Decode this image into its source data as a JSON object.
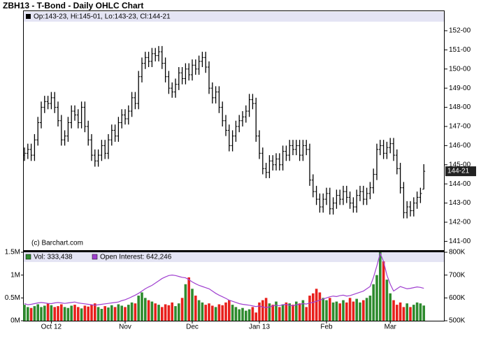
{
  "chart_data": [
    {
      "type": "ohlc",
      "title": "ZBH13 - T-Bond - Daily OHLC Chart",
      "header": "Op:143-23, Hi:145-01, Lo:143-23, Cl:144-21",
      "watermark": "(c) Barchart.com",
      "last_label": "144-21",
      "last_value": 144.66,
      "color": "#000000",
      "ylim": [
        140.54,
        153.02
      ],
      "yticks": [
        {
          "value": 141,
          "label": "141-00"
        },
        {
          "value": 142,
          "label": "142-00"
        },
        {
          "value": 143,
          "label": "143-00"
        },
        {
          "value": 144,
          "label": "144-00"
        },
        {
          "value": 145,
          "label": "145-00"
        },
        {
          "value": 146,
          "label": "146-00"
        },
        {
          "value": 147,
          "label": "147-00"
        },
        {
          "value": 148,
          "label": "148-00"
        },
        {
          "value": 149,
          "label": "149-00"
        },
        {
          "value": 150,
          "label": "150-00"
        },
        {
          "value": 151,
          "label": "151-00"
        },
        {
          "value": 152,
          "label": "152-00"
        }
      ],
      "open": [
        145.5,
        145.6,
        145.8,
        145.5,
        146.3,
        147.2,
        148.0,
        148.3,
        148.2,
        148.5,
        148.0,
        147.3,
        146.3,
        146.5,
        147.2,
        147.8,
        147.6,
        147.2,
        148.0,
        147.0,
        146.3,
        145.5,
        145.2,
        145.5,
        146.0,
        145.6,
        146.3,
        146.8,
        146.5,
        147.2,
        147.6,
        147.4,
        147.8,
        148.5,
        148.2,
        149.6,
        150.3,
        150.6,
        150.4,
        150.8,
        150.7,
        150.9,
        150.3,
        149.6,
        149.0,
        148.8,
        149.2,
        149.8,
        149.5,
        150.0,
        149.7,
        150.2,
        150.0,
        150.4,
        150.6,
        150.1,
        149.0,
        148.5,
        148.8,
        148.0,
        147.3,
        146.8,
        146.0,
        146.5,
        147.0,
        147.3,
        147.5,
        147.8,
        148.4,
        148.2,
        146.5,
        145.6,
        144.8,
        144.6,
        145.2,
        145.0,
        145.3,
        145.0,
        145.7,
        145.5,
        146.0,
        145.8,
        146.0,
        145.5,
        146.0,
        145.8,
        144.2,
        143.6,
        143.2,
        142.8,
        143.2,
        143.5,
        142.7,
        143.0,
        143.4,
        143.2,
        143.6,
        143.3,
        143.0,
        142.8,
        143.4,
        143.6,
        143.2,
        143.5,
        143.8,
        144.5,
        145.8,
        146.0,
        145.6,
        145.9,
        146.1,
        145.5,
        144.8,
        143.8,
        142.5,
        142.8,
        142.6,
        143.0,
        143.3,
        143.72
      ],
      "high": [
        145.9,
        146.1,
        146.1,
        146.6,
        147.5,
        148.3,
        148.6,
        148.6,
        148.8,
        148.8,
        148.3,
        147.6,
        146.8,
        147.5,
        148.1,
        148.1,
        147.9,
        148.3,
        148.3,
        147.3,
        146.6,
        145.8,
        145.8,
        146.3,
        146.3,
        146.6,
        147.1,
        147.1,
        147.5,
        147.9,
        147.9,
        148.1,
        148.8,
        148.8,
        149.9,
        150.6,
        150.9,
        150.9,
        151.1,
        151.1,
        151.2,
        151.2,
        150.6,
        149.9,
        149.3,
        149.5,
        150.1,
        150.1,
        150.3,
        150.3,
        150.5,
        150.5,
        150.7,
        150.9,
        150.9,
        150.4,
        149.3,
        149.1,
        149.1,
        148.3,
        147.6,
        147.1,
        146.8,
        147.3,
        147.6,
        147.8,
        148.1,
        148.7,
        148.7,
        148.5,
        146.8,
        145.9,
        145.1,
        145.5,
        145.5,
        145.6,
        145.6,
        146.0,
        146.0,
        146.3,
        146.3,
        146.3,
        146.3,
        146.3,
        146.3,
        146.1,
        144.5,
        143.9,
        143.5,
        143.5,
        143.8,
        143.8,
        143.3,
        143.7,
        143.7,
        143.9,
        143.9,
        143.6,
        143.3,
        143.7,
        143.9,
        143.9,
        143.8,
        144.1,
        144.8,
        146.1,
        146.3,
        146.3,
        146.2,
        146.4,
        146.4,
        145.8,
        145.1,
        144.1,
        143.1,
        143.1,
        143.3,
        143.6,
        143.8,
        145.03
      ],
      "low": [
        145.2,
        145.3,
        145.2,
        145.2,
        146.0,
        146.9,
        147.7,
        147.9,
        147.9,
        147.7,
        147.0,
        146.0,
        146.0,
        146.2,
        146.9,
        147.3,
        146.9,
        146.9,
        146.7,
        146.0,
        145.2,
        144.9,
        144.9,
        145.2,
        145.3,
        145.3,
        146.0,
        146.2,
        146.2,
        146.9,
        147.1,
        147.1,
        147.5,
        147.9,
        147.9,
        149.3,
        150.0,
        150.1,
        150.1,
        150.4,
        150.4,
        150.0,
        149.3,
        148.7,
        148.5,
        148.5,
        148.9,
        149.2,
        149.2,
        149.4,
        149.4,
        149.7,
        149.7,
        150.1,
        149.8,
        148.7,
        148.2,
        148.2,
        147.7,
        147.0,
        146.5,
        145.7,
        145.7,
        146.2,
        146.7,
        147.0,
        147.2,
        147.5,
        147.9,
        146.2,
        145.3,
        144.5,
        144.3,
        144.3,
        144.7,
        144.7,
        144.7,
        144.7,
        145.2,
        145.2,
        145.5,
        145.5,
        145.2,
        145.2,
        145.5,
        143.9,
        143.3,
        142.9,
        142.5,
        142.5,
        142.9,
        142.4,
        142.4,
        142.7,
        142.9,
        142.9,
        143.0,
        142.7,
        142.5,
        142.5,
        143.1,
        142.9,
        142.9,
        143.2,
        143.5,
        144.2,
        145.5,
        145.3,
        145.3,
        145.6,
        145.2,
        144.5,
        143.5,
        142.2,
        142.2,
        142.3,
        142.3,
        142.7,
        143.0,
        143.72
      ],
      "close": [
        145.6,
        145.8,
        145.5,
        146.3,
        147.2,
        148.0,
        148.3,
        148.2,
        148.5,
        148.0,
        147.3,
        146.3,
        146.5,
        147.2,
        147.8,
        147.6,
        147.2,
        148.0,
        147.0,
        146.3,
        145.5,
        145.2,
        145.5,
        146.0,
        145.6,
        146.3,
        146.8,
        146.5,
        147.2,
        147.6,
        147.4,
        147.8,
        148.5,
        148.2,
        149.6,
        150.3,
        150.6,
        150.4,
        150.8,
        150.7,
        150.9,
        150.3,
        149.6,
        149.0,
        148.8,
        149.2,
        149.8,
        149.5,
        150.0,
        149.7,
        150.2,
        150.0,
        150.4,
        150.6,
        150.1,
        149.0,
        148.5,
        148.8,
        148.0,
        147.3,
        146.8,
        146.0,
        146.5,
        147.0,
        147.3,
        147.5,
        147.8,
        148.4,
        148.2,
        146.5,
        145.6,
        144.8,
        144.6,
        145.2,
        145.0,
        145.3,
        145.0,
        145.7,
        145.5,
        146.0,
        145.8,
        146.0,
        145.5,
        146.0,
        145.8,
        144.2,
        143.6,
        143.2,
        142.8,
        143.2,
        143.5,
        142.7,
        143.0,
        143.4,
        143.2,
        143.6,
        143.3,
        143.0,
        142.8,
        143.4,
        143.6,
        143.2,
        143.5,
        143.8,
        144.5,
        145.8,
        146.0,
        145.6,
        145.9,
        146.1,
        145.5,
        144.8,
        143.8,
        142.5,
        142.8,
        142.6,
        143.0,
        143.3,
        143.5,
        144.66
      ]
    },
    {
      "type": "volume",
      "categories": [
        null,
        null,
        null,
        null,
        null,
        null,
        null,
        null,
        "Oct 12",
        null,
        null,
        null,
        null,
        null,
        null,
        null,
        null,
        null,
        null,
        null,
        null,
        null,
        null,
        null,
        null,
        null,
        null,
        null,
        null,
        null,
        "Nov",
        null,
        null,
        null,
        null,
        null,
        null,
        null,
        null,
        null,
        null,
        null,
        null,
        null,
        null,
        null,
        null,
        null,
        null,
        null,
        "Dec",
        null,
        null,
        null,
        null,
        null,
        null,
        null,
        null,
        null,
        null,
        null,
        null,
        null,
        null,
        null,
        null,
        null,
        null,
        null,
        "Jan 13",
        null,
        null,
        null,
        null,
        null,
        null,
        null,
        null,
        null,
        null,
        null,
        null,
        null,
        null,
        null,
        null,
        null,
        null,
        null,
        "Feb",
        null,
        null,
        null,
        null,
        null,
        null,
        null,
        null,
        null,
        null,
        null,
        null,
        null,
        null,
        null,
        null,
        null,
        null,
        "Mar",
        null,
        null,
        null,
        null,
        null,
        null,
        null,
        null,
        null,
        null
      ],
      "up_color": "#2e8b2e",
      "down_color": "#e8201c",
      "ylim": [
        0,
        1.5
      ],
      "yticks": [
        {
          "value": 0,
          "label": "0M"
        },
        {
          "value": 0.5,
          "label": "0.5M"
        },
        {
          "value": 1,
          "label": "1M"
        },
        {
          "value": 1.5,
          "label": "1.5M"
        }
      ],
      "y2lim": [
        500,
        800
      ],
      "y2ticks": [
        {
          "value": 500,
          "label": "500K"
        },
        {
          "value": 600,
          "label": "600K"
        },
        {
          "value": 700,
          "label": "700K"
        },
        {
          "value": 800,
          "label": "800K"
        }
      ],
      "series": [
        {
          "name": "Vol: 333,438",
          "color": "#2e8b2e",
          "values": [
            0.35,
            0.3,
            0.28,
            0.32,
            0.36,
            0.3,
            0.33,
            0.38,
            0.34,
            0.3,
            0.32,
            0.36,
            0.3,
            0.28,
            0.33,
            0.35,
            0.3,
            0.27,
            0.33,
            0.31,
            0.35,
            0.38,
            0.3,
            0.26,
            0.32,
            0.29,
            0.34,
            0.3,
            0.36,
            0.33,
            0.3,
            0.35,
            0.4,
            0.38,
            0.55,
            0.62,
            0.5,
            0.45,
            0.42,
            0.38,
            0.35,
            0.3,
            0.36,
            0.34,
            0.4,
            0.32,
            0.38,
            0.5,
            0.8,
            0.95,
            0.7,
            0.55,
            0.45,
            0.4,
            0.35,
            0.38,
            0.33,
            0.3,
            0.36,
            0.34,
            0.4,
            0.45,
            0.35,
            0.3,
            0.25,
            0.28,
            0.22,
            0.25,
            0.3,
            0.18,
            0.4,
            0.45,
            0.5,
            0.38,
            0.35,
            0.42,
            0.3,
            0.36,
            0.4,
            0.38,
            0.35,
            0.42,
            0.38,
            0.45,
            0.3,
            0.55,
            0.6,
            0.7,
            0.62,
            0.5,
            0.45,
            0.5,
            0.4,
            0.42,
            0.38,
            0.45,
            0.4,
            0.5,
            0.42,
            0.48,
            0.4,
            0.45,
            0.5,
            0.55,
            0.8,
            1.0,
            1.5,
            1.3,
            0.9,
            0.6,
            0.45,
            0.35,
            0.4,
            0.3,
            0.38,
            0.3,
            0.35,
            0.4,
            0.38,
            0.333
          ]
        },
        {
          "name": "Open Interest: 642,246",
          "color": "#a040d0",
          "axis": "y2",
          "values": [
            575,
            570,
            572,
            575,
            578,
            580,
            578,
            576,
            575,
            578,
            580,
            578,
            576,
            578,
            580,
            582,
            578,
            576,
            574,
            572,
            570,
            568,
            570,
            572,
            574,
            576,
            578,
            580,
            582,
            588,
            592,
            598,
            605,
            612,
            620,
            630,
            640,
            648,
            655,
            665,
            675,
            685,
            692,
            698,
            700,
            698,
            694,
            690,
            688,
            680,
            670,
            662,
            655,
            650,
            645,
            640,
            630,
            620,
            612,
            605,
            598,
            590,
            585,
            580,
            575,
            572,
            570,
            568,
            565,
            562,
            565,
            560,
            558,
            560,
            565,
            568,
            566,
            570,
            572,
            568,
            565,
            570,
            572,
            575,
            573,
            578,
            580,
            585,
            590,
            595,
            600,
            605,
            608,
            606,
            610,
            612,
            608,
            610,
            615,
            620,
            625,
            630,
            640,
            650,
            690,
            740,
            795,
            760,
            700,
            660,
            630,
            640,
            650,
            645,
            640,
            642,
            645,
            648,
            646,
            642.246
          ]
        }
      ]
    }
  ]
}
